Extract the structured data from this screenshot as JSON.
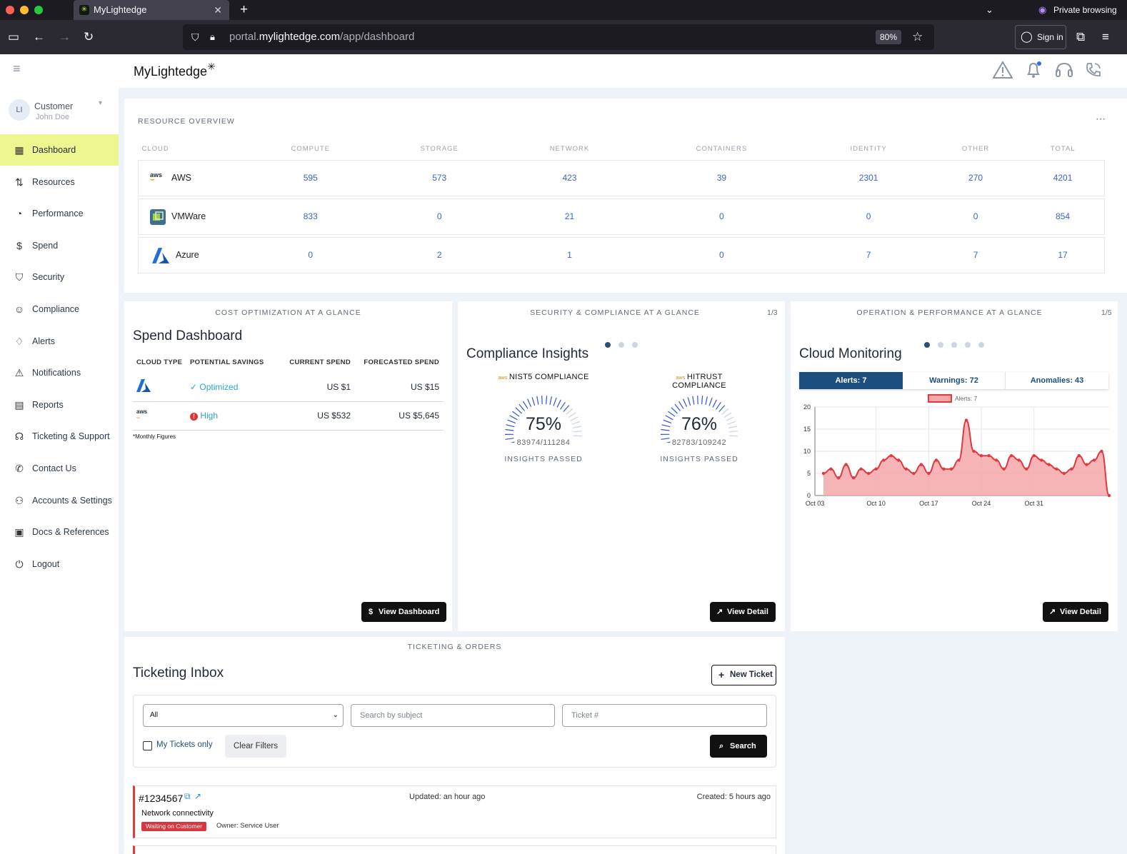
{
  "browser": {
    "tab_title": "MyLightedge",
    "private_label": "Private browsing",
    "url_prefix": "portal.",
    "url_domain": "mylightedge.com",
    "url_path": "/app/dashboard",
    "zoom": "80%",
    "sign_in": "Sign in"
  },
  "app": {
    "logo": "MyLightedge",
    "user": {
      "initials": "LI",
      "role": "Customer",
      "name": "John Doe"
    },
    "nav": [
      {
        "label": "Dashboard",
        "icon": "grid-icon",
        "active": true
      },
      {
        "label": "Resources",
        "icon": "resources-icon"
      },
      {
        "label": "Performance",
        "icon": "gauge-icon"
      },
      {
        "label": "Spend",
        "icon": "dollar-icon"
      },
      {
        "label": "Security",
        "icon": "shield-icon"
      },
      {
        "label": "Compliance",
        "icon": "user-check-icon"
      },
      {
        "label": "Alerts",
        "icon": "bell-icon"
      },
      {
        "label": "Notifications",
        "icon": "warning-icon"
      },
      {
        "label": "Reports",
        "icon": "report-icon"
      },
      {
        "label": "Ticketing & Support",
        "icon": "headset-icon"
      },
      {
        "label": "Contact Us",
        "icon": "phone-icon"
      },
      {
        "label": "Accounts & Settings",
        "icon": "users-icon"
      },
      {
        "label": "Docs & References",
        "icon": "docs-icon"
      },
      {
        "label": "Logout",
        "icon": "power-icon"
      }
    ]
  },
  "resource_overview": {
    "title": "RESOURCE OVERVIEW",
    "columns": [
      "CLOUD",
      "COMPUTE",
      "STORAGE",
      "NETWORK",
      "CONTAINERS",
      "IDENTITY",
      "OTHER",
      "TOTAL"
    ],
    "rows": [
      {
        "cloud": "AWS",
        "values": [
          "595",
          "573",
          "423",
          "39",
          "2301",
          "270",
          "4201"
        ]
      },
      {
        "cloud": "VMWare",
        "values": [
          "833",
          "0",
          "21",
          "0",
          "0",
          "0",
          "854"
        ]
      },
      {
        "cloud": "Azure",
        "values": [
          "0",
          "2",
          "1",
          "0",
          "7",
          "7",
          "17"
        ]
      }
    ]
  },
  "cost": {
    "caption": "COST OPTIMIZATION AT A GLANCE",
    "title": "Spend Dashboard",
    "columns": [
      "CLOUD TYPE",
      "POTENTIAL SAVINGS",
      "CURRENT SPEND",
      "FORECASTED SPEND"
    ],
    "rows": [
      {
        "cloud_icon": "azure-logo",
        "savings": "Optimized",
        "current": "US $1",
        "forecast": "US $15"
      },
      {
        "cloud_icon": "aws-logo",
        "savings": "High",
        "current": "US $532",
        "forecast": "US $5,645"
      }
    ],
    "footnote": "*Monthly Figures",
    "button": "View Dashboard"
  },
  "security": {
    "caption": "SECURITY & COMPLIANCE AT A GLANCE",
    "pager": "1/3",
    "title": "Compliance Insights",
    "rings": [
      {
        "label": "NIST5 COMPLIANCE",
        "percent": "75%",
        "fraction": "83974/111284",
        "caption": "INSIGHTS PASSED",
        "value": 75
      },
      {
        "label": "HITRUST COMPLIANCE",
        "percent": "76%",
        "fraction": "82783/109242",
        "caption": "INSIGHTS PASSED",
        "value": 76
      }
    ],
    "button": "View Detail"
  },
  "operation": {
    "caption": "OPERATION & PERFORMANCE AT A GLANCE",
    "pager": "1/5",
    "title": "Cloud Monitoring",
    "tabs": [
      "Alerts: 7",
      "Warnings: 72",
      "Anomalies: 43"
    ],
    "button": "View Detail"
  },
  "chart_data": {
    "type": "area",
    "series": [
      {
        "name": "Alerts: 7",
        "values": [
          5,
          6,
          4,
          7,
          4,
          6,
          5,
          6,
          8,
          9,
          8,
          6,
          5,
          7,
          5,
          8,
          6,
          6,
          8,
          17,
          10,
          9,
          9,
          8,
          6,
          9,
          8,
          6,
          9,
          8,
          7,
          6,
          5,
          6,
          9,
          7,
          8,
          10,
          0
        ]
      }
    ],
    "x": [
      "Oct 03",
      "Oct 04",
      "Oct 05",
      "Oct 06",
      "Oct 07",
      "Oct 08",
      "Oct 09",
      "Oct 10",
      "Oct 11",
      "Oct 12",
      "Oct 13",
      "Oct 14",
      "Oct 15",
      "Oct 16",
      "Oct 17",
      "Oct 18",
      "Oct 19",
      "Oct 20",
      "Oct 21",
      "Oct 22",
      "Oct 23",
      "Oct 24",
      "Oct 25",
      "Oct 26",
      "Oct 27",
      "Oct 28",
      "Oct 29",
      "Oct 30",
      "Oct 31",
      "Nov 01",
      "Nov 02",
      "Nov 03",
      "Nov 04",
      "Nov 05",
      "Nov 06",
      "Nov 07",
      "Nov 08",
      "Nov 09",
      "Nov 10"
    ],
    "xticks": [
      "Oct 03",
      "Oct 10",
      "Oct 17",
      "Oct 24",
      "Oct 31"
    ],
    "yticks": [
      "0",
      "5",
      "10",
      "15",
      "20"
    ],
    "ylim": [
      0,
      20
    ],
    "color": "#e0393e",
    "fill": "#f4a7a9",
    "grid": true,
    "legend": "top"
  },
  "ticketing": {
    "caption": "TICKETING & ORDERS",
    "title": "Ticketing Inbox",
    "new_ticket": "New Ticket",
    "filter_value": "All",
    "search_placeholder": "Search by subject",
    "ticket_placeholder": "Ticket #",
    "my_tickets": "My Tickets only",
    "clear": "Clear Filters",
    "search": "Search",
    "ticket": {
      "id": "#1234567",
      "updated": "Updated: an hour ago",
      "created": "Created: 5 hours ago",
      "subject": "Network connectivity",
      "status": "Waiting on Customer",
      "owner": "Owner:  Service User"
    }
  }
}
